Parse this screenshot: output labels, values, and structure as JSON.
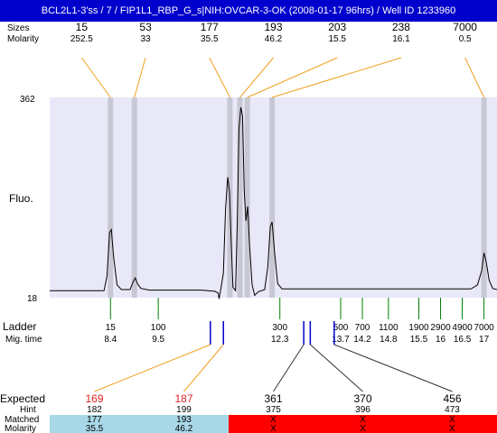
{
  "title": "BCL2L1-3'ss / 7 / FIP1L1_RBP_G_s|NIH:OVCAR-3-OK (2008-01-17 96hrs) / Well ID 1233960",
  "labels": {
    "sizes": "Sizes",
    "molarity": "Molarity",
    "fluo": "Fluo.",
    "ladder": "Ladder",
    "mig_time": "Mig. time",
    "expected": "Expected",
    "hint": "Hint",
    "matched": "Matched",
    "molarity_bottom": "Molarity"
  },
  "colors": {
    "plot_bg": "#e8e8f8",
    "peak_band": "#c8c8d4",
    "trace": "#000000",
    "connector": "#f0a020",
    "ladder_tick": "#008000",
    "marker_blue": "#0000cc",
    "expected_red": "#dd2222",
    "matched_ok": "#a8d8e8",
    "matched_bad": "#ff0000"
  },
  "chart_data": {
    "type": "line",
    "ylabel": "Fluo.",
    "ylim": [
      18,
      362
    ],
    "y_ticks": [
      "362",
      "18"
    ],
    "x_axis": "migration time (s)",
    "xlim": [
      7.0,
      17.3
    ],
    "peaks": [
      {
        "size": "15",
        "molarity": "252.5",
        "time": 8.4
      },
      {
        "size": "53",
        "molarity": "33",
        "time": 8.95
      },
      {
        "size": "177",
        "molarity": "35.5",
        "time": 11.15
      },
      {
        "size": "193",
        "molarity": "46.2",
        "time": 11.38
      },
      {
        "size": "203",
        "molarity": "15.5",
        "time": 11.55
      },
      {
        "size": "238",
        "molarity": "16.1",
        "time": 12.12
      },
      {
        "size": "7000",
        "molarity": "0.5",
        "time": 17.0
      }
    ],
    "trace": [
      [
        7.0,
        30
      ],
      [
        8.25,
        30
      ],
      [
        8.32,
        55
      ],
      [
        8.38,
        130
      ],
      [
        8.42,
        135
      ],
      [
        8.47,
        90
      ],
      [
        8.55,
        40
      ],
      [
        8.65,
        32
      ],
      [
        8.85,
        32
      ],
      [
        8.92,
        45
      ],
      [
        8.97,
        52
      ],
      [
        9.02,
        42
      ],
      [
        9.1,
        34
      ],
      [
        9.3,
        31
      ],
      [
        10.5,
        31
      ],
      [
        10.8,
        29
      ],
      [
        10.88,
        26
      ],
      [
        10.9,
        16
      ],
      [
        10.92,
        24
      ],
      [
        11.0,
        60
      ],
      [
        11.05,
        170
      ],
      [
        11.1,
        225
      ],
      [
        11.14,
        200
      ],
      [
        11.18,
        110
      ],
      [
        11.22,
        36
      ],
      [
        11.28,
        30
      ],
      [
        11.32,
        150
      ],
      [
        11.36,
        310
      ],
      [
        11.4,
        345
      ],
      [
        11.44,
        330
      ],
      [
        11.48,
        200
      ],
      [
        11.52,
        150
      ],
      [
        11.56,
        175
      ],
      [
        11.6,
        110
      ],
      [
        11.66,
        40
      ],
      [
        11.72,
        22
      ],
      [
        11.8,
        28
      ],
      [
        11.95,
        32
      ],
      [
        12.02,
        70
      ],
      [
        12.08,
        140
      ],
      [
        12.12,
        148
      ],
      [
        12.18,
        95
      ],
      [
        12.25,
        42
      ],
      [
        12.35,
        33
      ],
      [
        16.7,
        33
      ],
      [
        16.85,
        40
      ],
      [
        16.95,
        65
      ],
      [
        17.0,
        95
      ],
      [
        17.05,
        80
      ],
      [
        17.12,
        48
      ],
      [
        17.2,
        34
      ],
      [
        17.3,
        32
      ]
    ],
    "ladder": [
      {
        "size": "15",
        "time": "8.4",
        "tval": 8.4
      },
      {
        "size": "100",
        "time": "9.5",
        "tval": 9.5
      },
      {
        "size": "300",
        "time": "12.3",
        "tval": 12.3
      },
      {
        "size": "500",
        "time": "13.7",
        "tval": 13.7
      },
      {
        "size": "700",
        "time": "14.2",
        "tval": 14.2
      },
      {
        "size": "1100",
        "time": "14.8",
        "tval": 14.8
      },
      {
        "size": "1900",
        "time": "15.5",
        "tval": 15.5
      },
      {
        "size": "2900",
        "time": "16",
        "tval": 16.0
      },
      {
        "size": "4900",
        "time": "16.5",
        "tval": 16.5
      },
      {
        "size": "7000",
        "time": "17",
        "tval": 17.0
      }
    ],
    "expected": [
      {
        "expected": "169",
        "hint": "182",
        "matched": "177",
        "molarity": "35.5",
        "status": "ok",
        "marker_time": 10.7
      },
      {
        "expected": "187",
        "hint": "199",
        "matched": "193",
        "molarity": "46.2",
        "status": "ok",
        "marker_time": 11.0
      },
      {
        "expected": "361",
        "hint": "375",
        "matched": "X",
        "molarity": "X",
        "status": "fail",
        "marker_time": 12.85
      },
      {
        "expected": "370",
        "hint": "396",
        "matched": "X",
        "molarity": "X",
        "status": "fail",
        "marker_time": 13.0
      },
      {
        "expected": "456",
        "hint": "473",
        "matched": "X",
        "molarity": "X",
        "status": "fail",
        "marker_time": 13.55
      }
    ]
  }
}
